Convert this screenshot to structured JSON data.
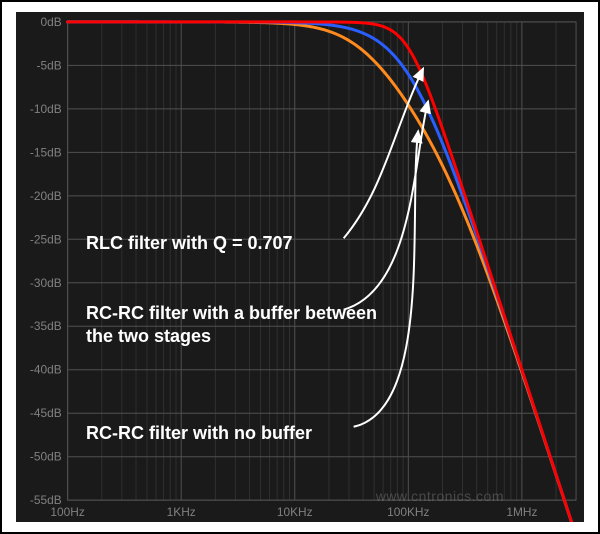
{
  "chart": {
    "type": "line-bode",
    "background_color": "#1a1a1a",
    "frame_border": "#000000",
    "grid_color_major": "#505050",
    "grid_color_minor": "#303030",
    "axis_text_color": "#808080",
    "axis_fontsize": 12,
    "annotation_color": "#ffffff",
    "annotation_fontsize": 18,
    "annotation_fontweight": "bold",
    "arrow_color": "#ffffff",
    "arrow_width": 2,
    "line_width": 3,
    "x_axis": {
      "scale": "log",
      "min_hz": 100,
      "max_hz": 3000000,
      "tick_labels": [
        "100Hz",
        "1KHz",
        "10KHz",
        "100KHz",
        "1MHz"
      ],
      "tick_values": [
        100,
        1000,
        10000,
        100000,
        1000000
      ]
    },
    "y_axis": {
      "scale": "linear",
      "min_db": -55,
      "max_db": 0,
      "step": 5,
      "tick_labels": [
        "0dB",
        "-5dB",
        "-10dB",
        "-15dB",
        "-20dB",
        "-25dB",
        "-30dB",
        "-35dB",
        "-40dB",
        "-45dB",
        "-50dB",
        "-55dB"
      ],
      "tick_values": [
        0,
        -5,
        -10,
        -15,
        -20,
        -25,
        -30,
        -35,
        -40,
        -45,
        -50,
        -55
      ]
    },
    "series": [
      {
        "name": "RLC filter with Q = 0.707",
        "color": "#ff0000",
        "fc_hz": 100000,
        "type": "rlc_q0707"
      },
      {
        "name": "RC-RC filter with a buffer between the two stages",
        "color": "#2a5fff",
        "fc_hz": 100000,
        "type": "rcrc_buffered"
      },
      {
        "name": "RC-RC filter with no buffer",
        "color": "#ff8a1e",
        "fc_hz": 100000,
        "type": "rcrc_unbuffered"
      }
    ],
    "annotations": [
      {
        "text": "RLC filter with Q = 0.707",
        "target_series": 0
      },
      {
        "text": "RC-RC filter with a buffer between\nthe two stages",
        "target_series": 1
      },
      {
        "text": "RC-RC filter with no buffer",
        "target_series": 2
      }
    ],
    "watermark": "www.cntronics.com"
  }
}
